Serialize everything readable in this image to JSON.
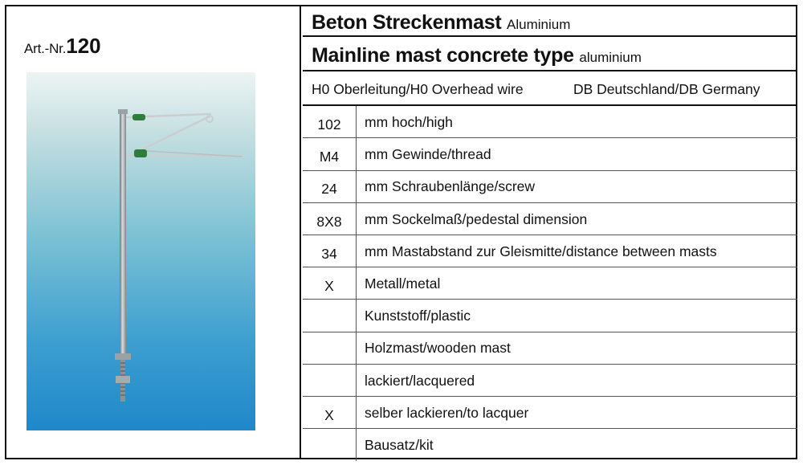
{
  "article": {
    "prefix": "Art.-Nr.",
    "number": "120"
  },
  "title_de": {
    "main": "Beton Streckenmast",
    "material": "Aluminium"
  },
  "title_en": {
    "main": "Mainline mast concrete type",
    "material": "aluminium"
  },
  "subtitle": {
    "wire": "H0 Oberleitung/H0 Overhead wire",
    "country": "DB Deutschland/DB Germany"
  },
  "specs": [
    {
      "value": "102",
      "label": "mm hoch/high"
    },
    {
      "value": "M4",
      "label": "mm Gewinde/thread"
    },
    {
      "value": "24",
      "label": "mm Schraubenlänge/screw"
    },
    {
      "value": "8X8",
      "label": "mm Sockelmaß/pedestal dimension"
    },
    {
      "value": "34",
      "label": "mm Mastabstand zur Gleismitte/distance between masts"
    },
    {
      "value": "X",
      "label": "Metall/metal"
    },
    {
      "value": "",
      "label": "Kunststoff/plastic"
    },
    {
      "value": "",
      "label": "Holzmast/wooden mast"
    },
    {
      "value": "",
      "label": "lackiert/lacquered"
    },
    {
      "value": "X",
      "label": "selber lackieren/to lacquer"
    },
    {
      "value": "",
      "label": "Bausatz/kit"
    }
  ],
  "photo": {
    "subject": "mast-icon"
  }
}
